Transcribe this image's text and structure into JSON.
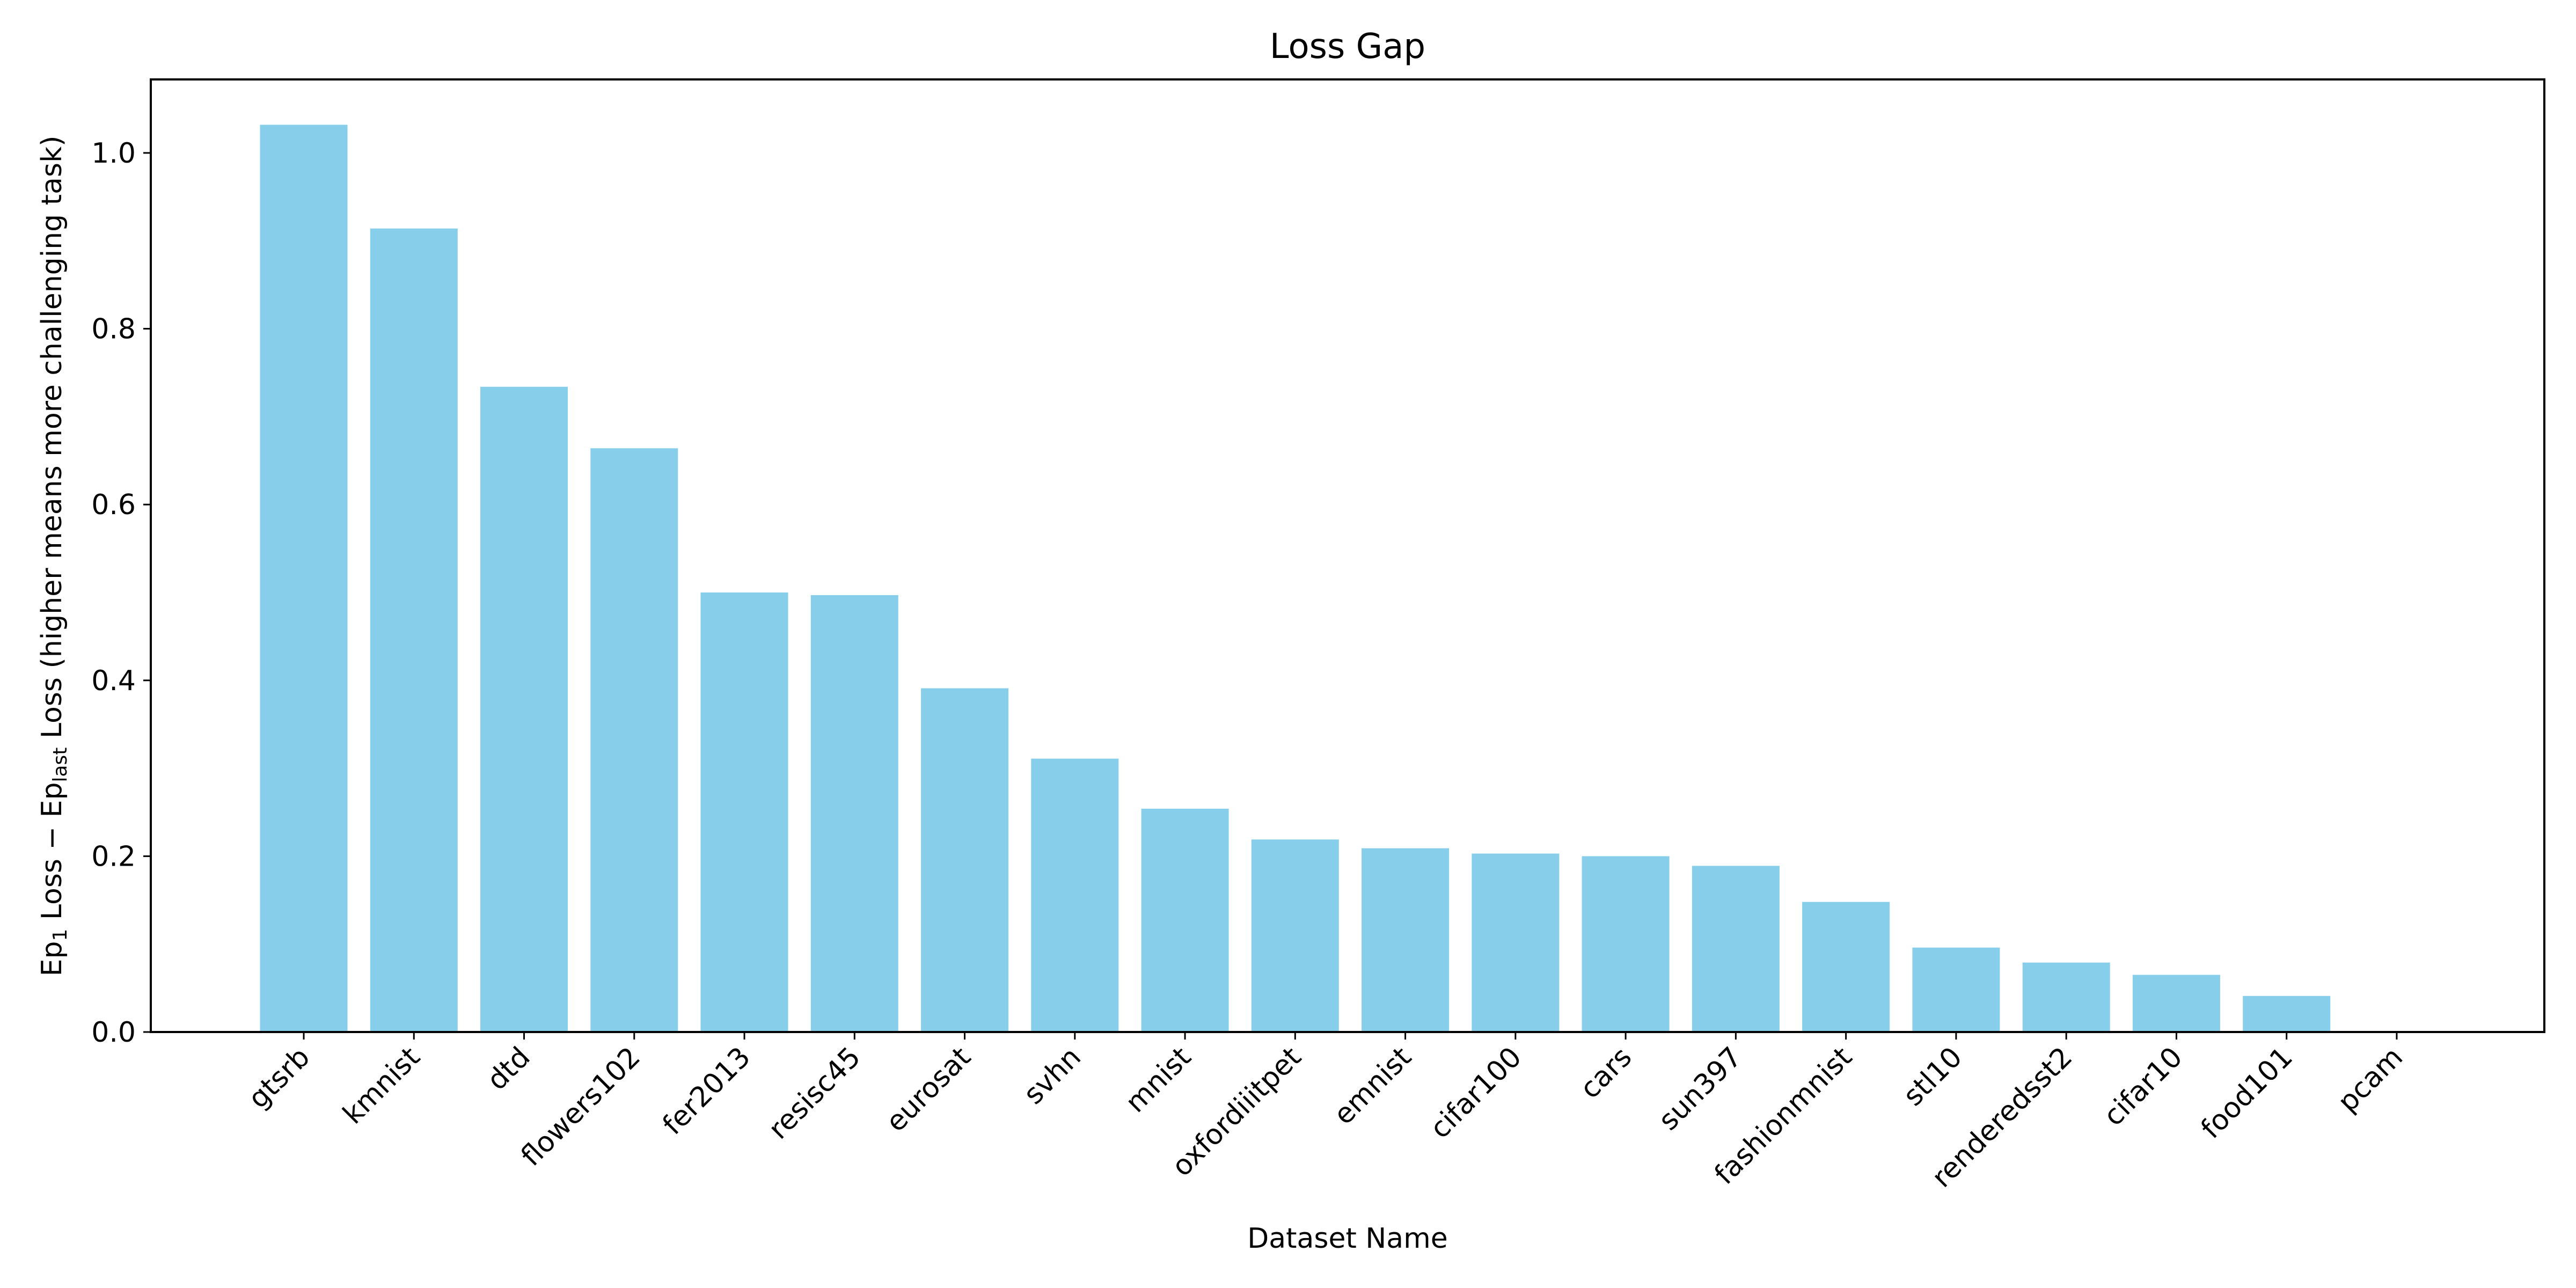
{
  "chart_data": {
    "type": "bar",
    "title": "Loss Gap",
    "xlabel": "Dataset Name",
    "ylabel": {
      "prefix": "Ep",
      "sub1": "1",
      "mid": " Loss − Ep",
      "sub2": "last",
      "suffix": " Loss (higher means more challenging task)"
    },
    "categories": [
      "gtsrb",
      "kmnist",
      "dtd",
      "flowers102",
      "fer2013",
      "resisc45",
      "eurosat",
      "svhn",
      "mnist",
      "oxfordiiitpet",
      "emnist",
      "cifar100",
      "cars",
      "sun397",
      "fashionmnist",
      "stl10",
      "renderedsst2",
      "cifar10",
      "food101",
      "pcam"
    ],
    "values": [
      1.032,
      0.914,
      0.734,
      0.664,
      0.5,
      0.497,
      0.391,
      0.311,
      0.254,
      0.219,
      0.209,
      0.203,
      0.2,
      0.189,
      0.148,
      0.096,
      0.079,
      0.065,
      0.041,
      0.0
    ],
    "yticks": [
      "0.0",
      "0.2",
      "0.4",
      "0.6",
      "0.8",
      "1.0"
    ],
    "ylim": [
      0,
      1.0836
    ],
    "grid": false,
    "legend": "none",
    "bar_color": "#87ceeb"
  }
}
